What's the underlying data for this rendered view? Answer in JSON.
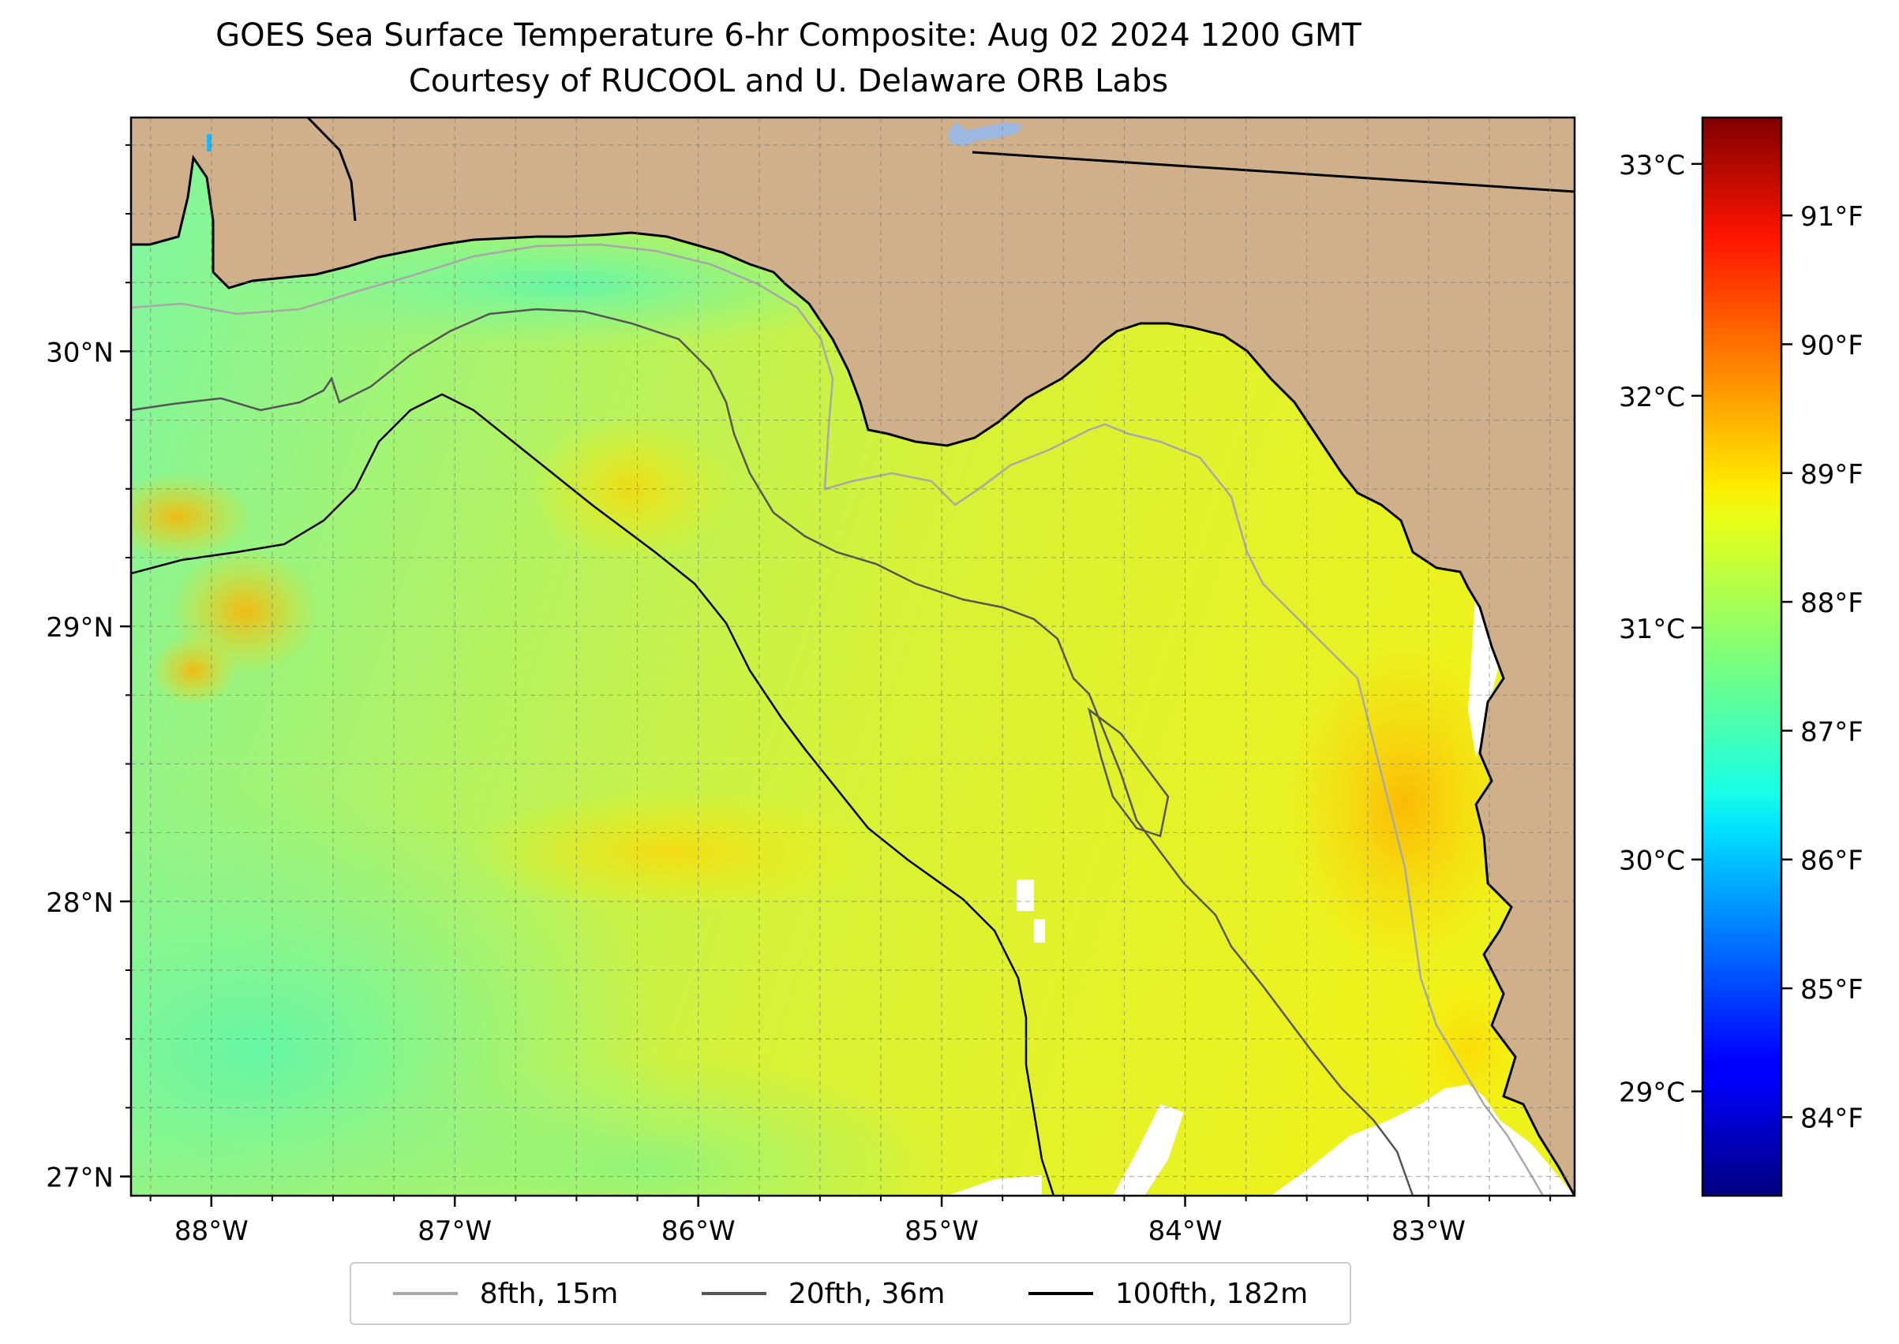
{
  "title_line1": "GOES Sea Surface Temperature 6-hr Composite: Aug 02 2024 1200 GMT",
  "title_line2": "Courtesy of RUCOOL and U. Delaware ORB Labs",
  "map": {
    "extent": {
      "lon_min": -88.33,
      "lon_max": -82.4,
      "lat_min": 26.93,
      "lat_max": 30.85
    },
    "lat_ticks": [
      {
        "value": 30,
        "label": "30°N"
      },
      {
        "value": 29,
        "label": "29°N"
      },
      {
        "value": 28,
        "label": "28°N"
      },
      {
        "value": 27,
        "label": "27°N"
      }
    ],
    "lon_ticks": [
      {
        "value": -88,
        "label": "88°W"
      },
      {
        "value": -87,
        "label": "87°W"
      },
      {
        "value": -86,
        "label": "86°W"
      },
      {
        "value": -85,
        "label": "85°W"
      },
      {
        "value": -84,
        "label": "84°W"
      },
      {
        "value": -83,
        "label": "83°W"
      }
    ],
    "land_color": "#cfb08a",
    "gridlines": true
  },
  "colorbar": {
    "celsius_range": [
      28.55,
      33.2
    ],
    "celsius_ticks": [
      {
        "value": 33,
        "label": "33°C"
      },
      {
        "value": 32,
        "label": "32°C"
      },
      {
        "value": 31,
        "label": "31°C"
      },
      {
        "value": 30,
        "label": "30°C"
      },
      {
        "value": 29,
        "label": "29°C"
      }
    ],
    "fahrenheit_ticks": [
      {
        "value": 91,
        "label": "91°F"
      },
      {
        "value": 90,
        "label": "90°F"
      },
      {
        "value": 89,
        "label": "89°F"
      },
      {
        "value": 88,
        "label": "88°F"
      },
      {
        "value": 87,
        "label": "87°F"
      },
      {
        "value": 86,
        "label": "86°F"
      },
      {
        "value": 85,
        "label": "85°F"
      },
      {
        "value": 84,
        "label": "84°F"
      }
    ],
    "colormap": "jet"
  },
  "legend": [
    {
      "label": "8fth, 15m",
      "color": "#a8a8a8"
    },
    {
      "label": "20fth, 36m",
      "color": "#555555"
    },
    {
      "label": "100fth, 182m",
      "color": "#000000"
    }
  ]
}
